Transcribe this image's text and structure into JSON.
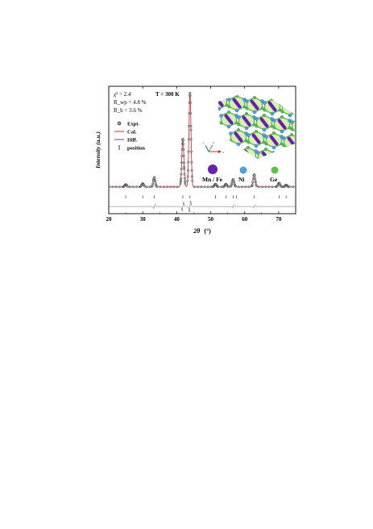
{
  "chart_data": {
    "type": "line",
    "xlabel_symbol": "2θ",
    "xlabel_unit": "(°)",
    "ylabel": "Intensity (a.u.)",
    "xlim": [
      20,
      75
    ],
    "xticks": [
      20,
      30,
      40,
      50,
      60,
      70
    ],
    "xtick_labels": [
      "20",
      "30",
      "40",
      "50",
      "60",
      "70"
    ],
    "ylim": [
      -0.25,
      1.08
    ],
    "y_scale": "arbitrary units (normalized)",
    "grid": false,
    "annotations": {
      "temperature": "T = 300 K",
      "chi2": "χ² = 2.4",
      "rwp": "R_wp = 4.8 %",
      "rb": "R_b = 3.6 %"
    },
    "legend": {
      "placement": "upper-left",
      "entries": [
        {
          "label": "Expt.",
          "symbol": "circle",
          "color": "#555555"
        },
        {
          "label": "Cal.",
          "symbol": "line",
          "color": "#e02020"
        },
        {
          "label": "Diff.",
          "symbol": "line",
          "color": "#6a3a9a"
        },
        {
          "label": "position",
          "symbol": "tick",
          "color": "#2a2ab0"
        }
      ]
    },
    "background_level": 0.03,
    "peaks": [
      {
        "pos": 25.0,
        "height": 0.025,
        "width": 0.3
      },
      {
        "pos": 30.0,
        "height": 0.035,
        "width": 0.3
      },
      {
        "pos": 33.4,
        "height": 0.1,
        "width": 0.28
      },
      {
        "pos": 41.8,
        "height": 0.5,
        "width": 0.3
      },
      {
        "pos": 43.9,
        "height": 0.98,
        "width": 0.3
      },
      {
        "pos": 51.4,
        "height": 0.03,
        "width": 0.3
      },
      {
        "pos": 54.5,
        "height": 0.03,
        "width": 0.3
      },
      {
        "pos": 56.6,
        "height": 0.08,
        "width": 0.3
      },
      {
        "pos": 62.8,
        "height": 0.13,
        "width": 0.3
      },
      {
        "pos": 70.1,
        "height": 0.04,
        "width": 0.3
      },
      {
        "pos": 72.2,
        "height": 0.02,
        "width": 0.3
      }
    ],
    "bragg_positions": [
      25.0,
      30.0,
      33.4,
      41.8,
      43.9,
      51.4,
      54.5,
      56.6,
      57.6,
      62.8,
      70.1,
      72.2
    ],
    "difference_features": [
      {
        "pos": 33.4,
        "amplitude": 0.02
      },
      {
        "pos": 41.8,
        "amplitude": 0.05
      },
      {
        "pos": 43.9,
        "amplitude": 0.06
      },
      {
        "pos": 56.6,
        "amplitude": 0.015
      },
      {
        "pos": 62.8,
        "amplitude": 0.015
      }
    ]
  },
  "structure_legend": [
    {
      "label": "Mn / Fe",
      "color": "#6a1fb0",
      "size": "large"
    },
    {
      "label": "Ni",
      "color": "#4f9fe0",
      "size": "medium"
    },
    {
      "label": "Ge",
      "color": "#5bc24a",
      "size": "medium"
    }
  ],
  "axis_triad": {
    "a": "a",
    "b": "b",
    "c": "c"
  }
}
